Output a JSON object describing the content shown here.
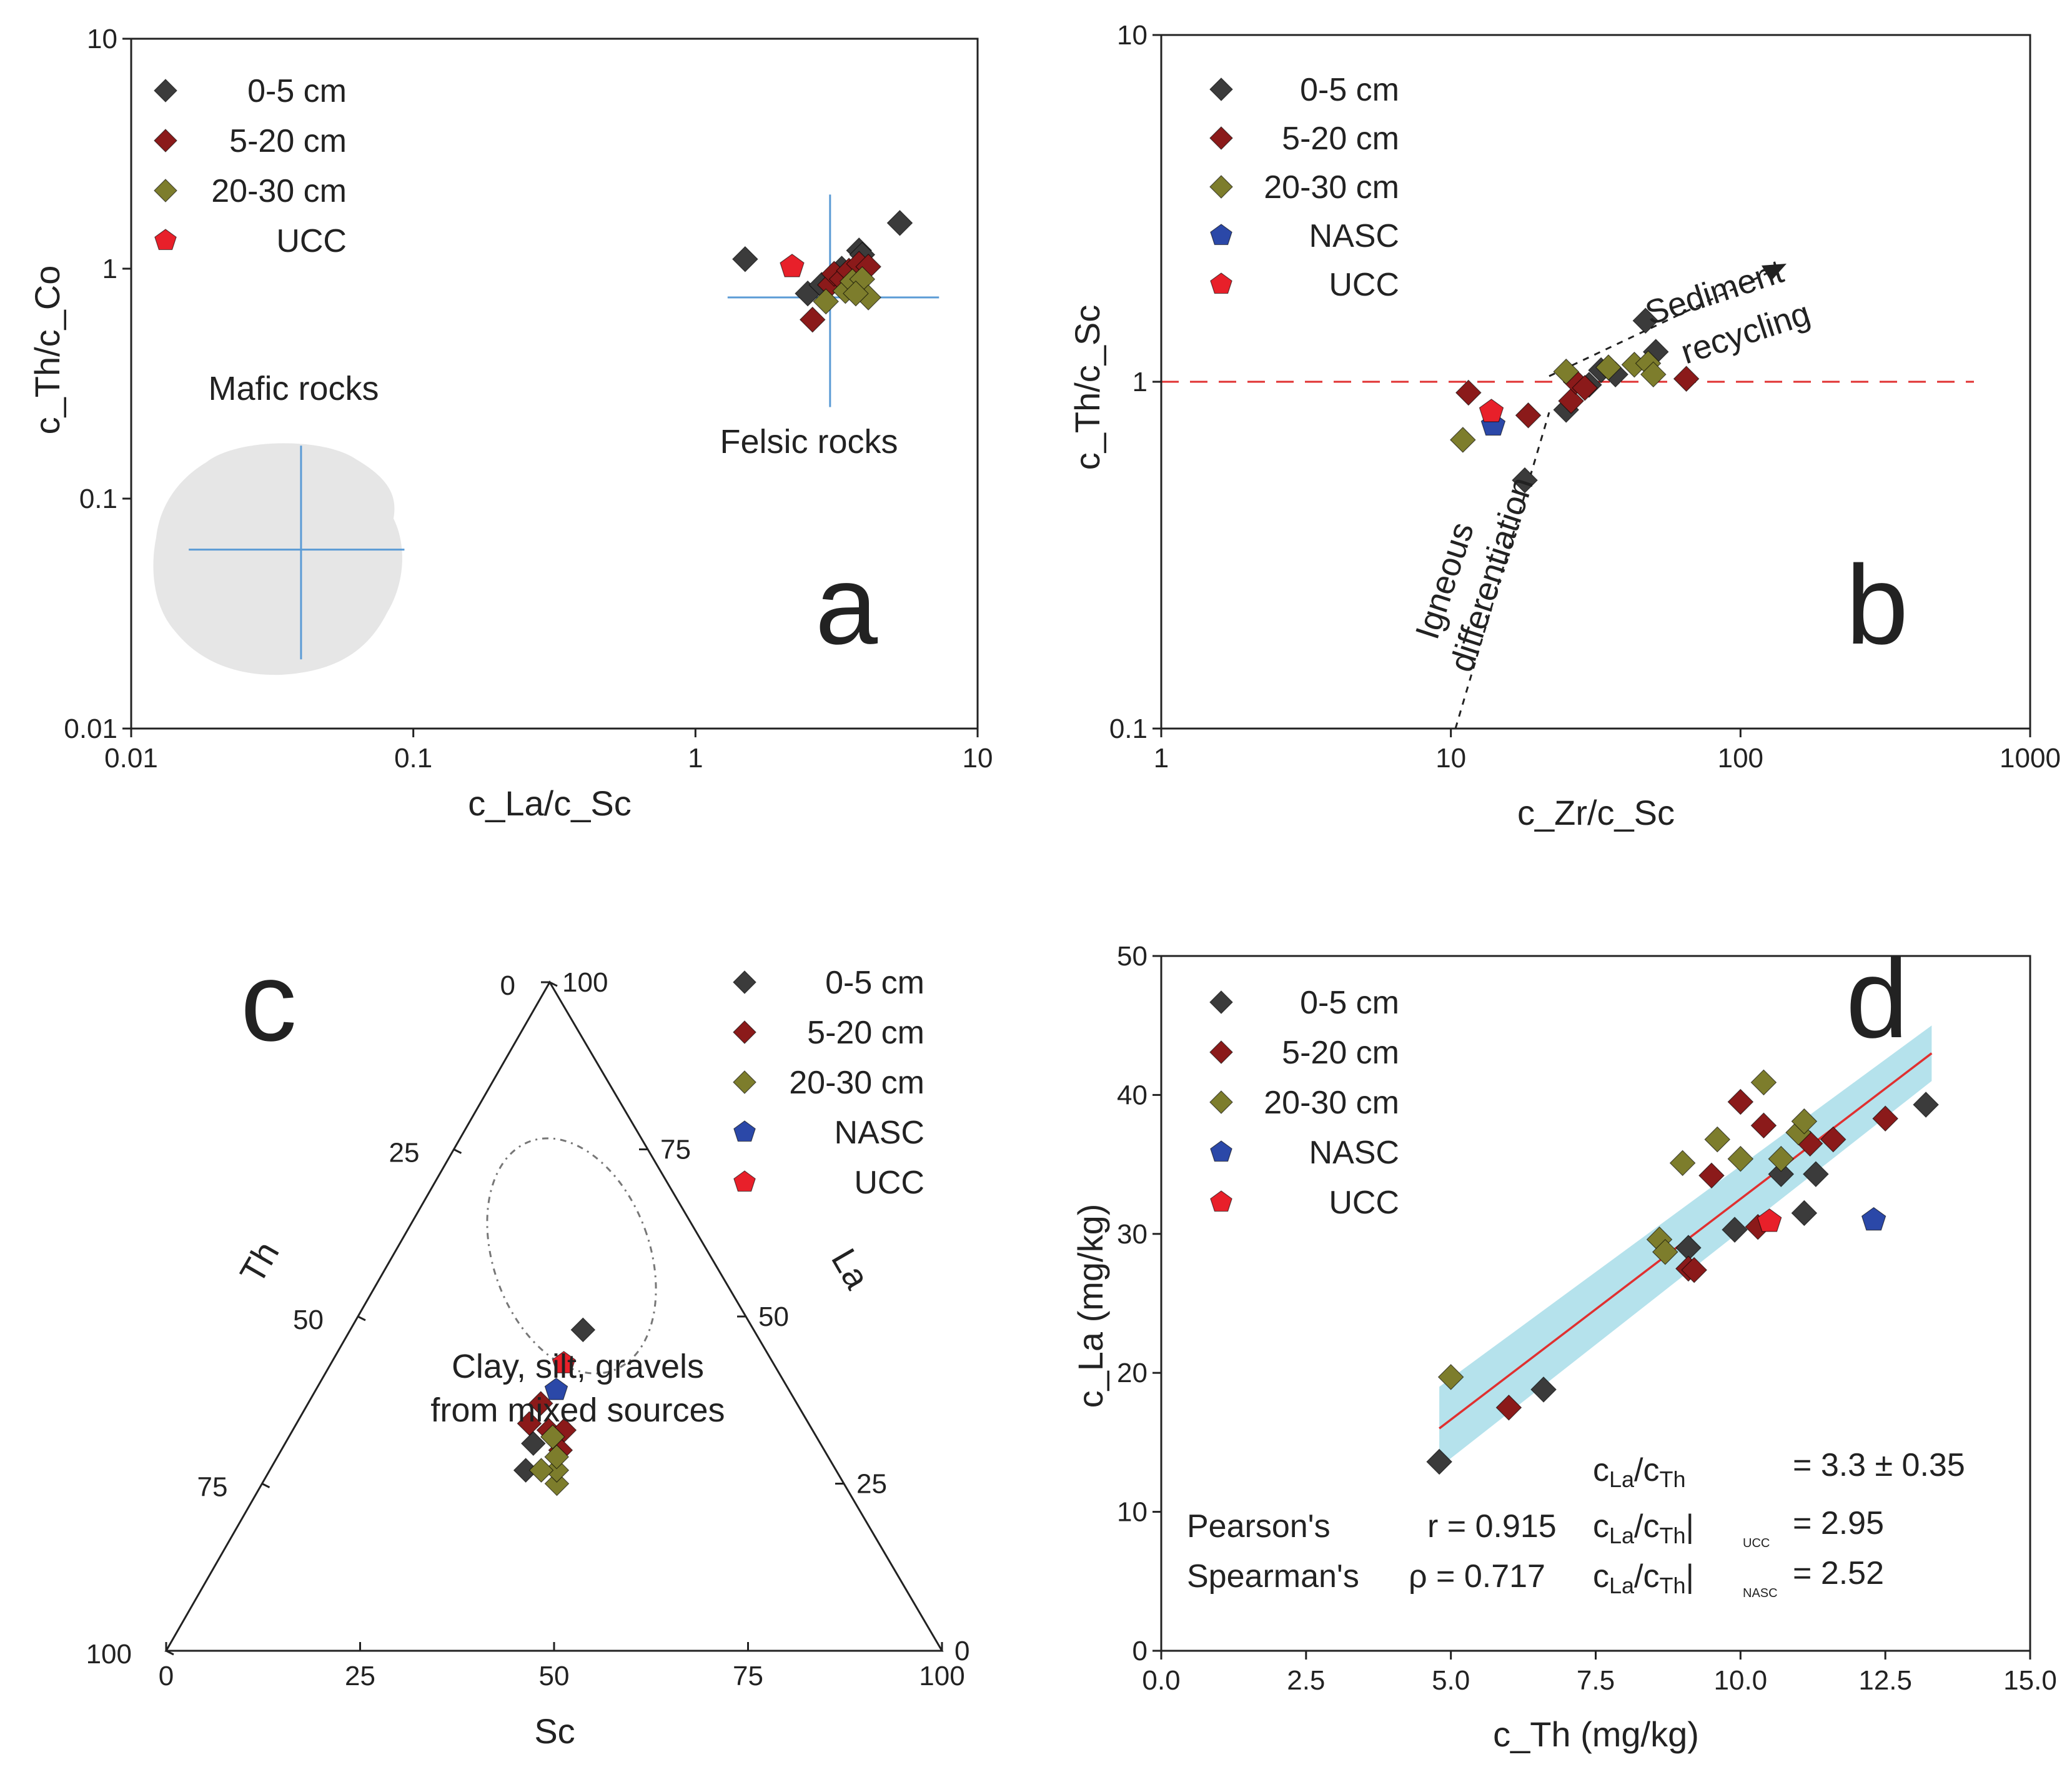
{
  "colors": {
    "0-5 cm": "#3b3b3b",
    "5-20 cm": "#8b1a1a",
    "20-30 cm": "#7d7d2c",
    "NASC": "#2b48a8",
    "UCC": "#e8202a",
    "fit": "#e03030",
    "ci": "#a8dde9",
    "cross": "#5b9bd5",
    "region": "#e6e6e6",
    "ref_line": "#e03030"
  },
  "chart_data": [
    {
      "panel": "a",
      "type": "scatter",
      "title": "",
      "xlabel": "c_La/c_Sc",
      "ylabel": "c_Th/c_Co",
      "xscale": "log",
      "yscale": "log",
      "xlim": [
        0.01,
        10
      ],
      "ylim": [
        0.01,
        10
      ],
      "xticks": [
        "0.01",
        "0.1",
        "1",
        "10"
      ],
      "yticks": [
        "0.01",
        "0.1",
        "1",
        "10"
      ],
      "legend": [
        "0-5 cm",
        "5-20 cm",
        "20-30 cm",
        "UCC"
      ],
      "legend_position": "top-left",
      "series": [
        {
          "name": "0-5 cm",
          "marker": "diamond",
          "points": [
            [
              1.5,
              1.1
            ],
            [
              2.5,
              0.78
            ],
            [
              2.8,
              0.85
            ],
            [
              3.3,
              1.0
            ],
            [
              3.8,
              1.2
            ],
            [
              3.9,
              1.15
            ],
            [
              5.3,
              1.58
            ]
          ]
        },
        {
          "name": "5-20 cm",
          "marker": "diamond",
          "points": [
            [
              2.6,
              0.6
            ],
            [
              3.0,
              0.85
            ],
            [
              3.1,
              0.95
            ],
            [
              3.3,
              0.9
            ],
            [
              3.5,
              0.98
            ],
            [
              3.8,
              1.05
            ],
            [
              4.1,
              1.02
            ]
          ]
        },
        {
          "name": "20-30 cm",
          "marker": "diamond",
          "points": [
            [
              2.9,
              0.72
            ],
            [
              3.4,
              0.8
            ],
            [
              3.6,
              0.88
            ],
            [
              3.9,
              0.9
            ],
            [
              4.1,
              0.75
            ],
            [
              3.7,
              0.78
            ]
          ]
        },
        {
          "name": "UCC",
          "marker": "pentagon",
          "points": [
            [
              2.2,
              1.02
            ]
          ]
        }
      ],
      "annotations": [
        "Mafic rocks",
        "Felsic rocks",
        "a"
      ],
      "felsic_cross": {
        "x_center": 3.0,
        "y_center": 0.75,
        "x_range": [
          1.3,
          7.3
        ],
        "y_range": [
          0.25,
          2.1
        ]
      },
      "mafic_cross": {
        "x_center": 0.04,
        "y_center": 0.06,
        "x_range": [
          0.016,
          0.093
        ],
        "y_range": [
          0.02,
          0.17
        ]
      }
    },
    {
      "panel": "b",
      "type": "scatter",
      "title": "",
      "xlabel": "c_Zr/c_Sc",
      "ylabel": "c_Th/c_Sc",
      "xscale": "log",
      "yscale": "log",
      "xlim": [
        1,
        1000
      ],
      "ylim": [
        0.1,
        10
      ],
      "xticks": [
        "1",
        "10",
        "100",
        "1000"
      ],
      "yticks": [
        "0.1",
        "1",
        "10"
      ],
      "legend": [
        "0-5 cm",
        "5-20 cm",
        "20-30 cm",
        "NASC",
        "UCC"
      ],
      "legend_position": "top-left",
      "reference_line_y": 1,
      "series": [
        {
          "name": "0-5 cm",
          "marker": "diamond",
          "points": [
            [
              18,
              0.52
            ],
            [
              25,
              0.83
            ],
            [
              30,
              0.98
            ],
            [
              33,
              1.08
            ],
            [
              37,
              1.05
            ],
            [
              47,
              1.5
            ],
            [
              51,
              1.22
            ]
          ]
        },
        {
          "name": "5-20 cm",
          "marker": "diamond",
          "points": [
            [
              11.5,
              0.93
            ],
            [
              18.5,
              0.8
            ],
            [
              26,
              0.88
            ],
            [
              27,
              1.0
            ],
            [
              29,
              0.96
            ],
            [
              65,
              1.02
            ]
          ]
        },
        {
          "name": "20-30 cm",
          "marker": "diamond",
          "points": [
            [
              11,
              0.68
            ],
            [
              25,
              1.07
            ],
            [
              35,
              1.1
            ],
            [
              43,
              1.12
            ],
            [
              48,
              1.13
            ],
            [
              50,
              1.05
            ]
          ]
        },
        {
          "name": "NASC",
          "marker": "pentagon",
          "points": [
            [
              14,
              0.75
            ]
          ]
        },
        {
          "name": "UCC",
          "marker": "pentagon",
          "points": [
            [
              13.8,
              0.82
            ]
          ]
        }
      ],
      "annotations": [
        "Sediment",
        "recycling",
        "Igneous",
        "differentiation",
        "b"
      ]
    },
    {
      "panel": "c",
      "type": "scatter",
      "title": "",
      "ternary": true,
      "axes": [
        "Th",
        "La",
        "Sc"
      ],
      "ticks": [
        "0",
        "25",
        "50",
        "75",
        "100"
      ],
      "legend": [
        "0-5 cm",
        "5-20 cm",
        "20-30 cm",
        "NASC",
        "UCC"
      ],
      "legend_position": "top-right",
      "series": [
        {
          "name": "0-5 cm",
          "marker": "diamond",
          "points": [
            [
              40,
              33,
              27
            ],
            [
              37,
              32,
              31
            ],
            [
              22,
              30,
              48
            ]
          ]
        },
        {
          "name": "5-20 cm",
          "marker": "diamond",
          "points": [
            [
              36,
              30,
              34
            ],
            [
              34,
              33,
              33
            ],
            [
              32,
              35,
              33
            ],
            [
              34,
              36,
              30
            ],
            [
              33,
              30,
              37
            ]
          ]
        },
        {
          "name": "20-30 cm",
          "marker": "diamond",
          "points": [
            [
              37,
              38,
              25
            ],
            [
              36,
              37,
              27
            ],
            [
              35,
              36,
              29
            ],
            [
              38,
              35,
              27
            ],
            [
              34,
              34,
              32
            ]
          ]
        },
        {
          "name": "NASC",
          "marker": "pentagon",
          "points": [
            [
              30,
              31,
              39
            ]
          ]
        },
        {
          "name": "UCC",
          "marker": "pentagon",
          "points": [
            [
              27,
              30,
              43
            ]
          ]
        }
      ],
      "annotations": [
        "Clay, silt, gravels",
        "from mixed sources",
        "c"
      ]
    },
    {
      "panel": "d",
      "type": "scatter",
      "title": "",
      "xlabel": "c_Th (mg/kg)",
      "ylabel": "c_La (mg/kg)",
      "xlim": [
        0,
        15
      ],
      "ylim": [
        0,
        50
      ],
      "xticks": [
        "0.0",
        "2.5",
        "5.0",
        "7.5",
        "10.0",
        "12.5",
        "15.0"
      ],
      "yticks": [
        "0",
        "10",
        "20",
        "30",
        "40",
        "50"
      ],
      "legend": [
        "0-5 cm",
        "5-20 cm",
        "20-30 cm",
        "NASC",
        "UCC"
      ],
      "legend_position": "top-left",
      "series": [
        {
          "name": "0-5 cm",
          "marker": "diamond",
          "points": [
            [
              4.8,
              13.6
            ],
            [
              6.6,
              18.8
            ],
            [
              9.1,
              29.0
            ],
            [
              9.9,
              30.3
            ],
            [
              10.7,
              34.3
            ],
            [
              11.1,
              31.5
            ],
            [
              11.3,
              34.3
            ],
            [
              13.2,
              39.3
            ]
          ]
        },
        {
          "name": "5-20 cm",
          "marker": "diamond",
          "points": [
            [
              6.0,
              17.5
            ],
            [
              9.1,
              27.5
            ],
            [
              9.2,
              27.4
            ],
            [
              9.5,
              34.2
            ],
            [
              10.0,
              39.5
            ],
            [
              10.3,
              30.5
            ],
            [
              10.4,
              37.8
            ],
            [
              11.2,
              36.5
            ],
            [
              11.6,
              36.8
            ],
            [
              12.5,
              38.3
            ]
          ]
        },
        {
          "name": "20-30 cm",
          "marker": "diamond",
          "points": [
            [
              5.0,
              19.7
            ],
            [
              8.6,
              29.6
            ],
            [
              8.7,
              28.7
            ],
            [
              9.0,
              35.1
            ],
            [
              9.6,
              36.8
            ],
            [
              10.0,
              35.4
            ],
            [
              10.4,
              40.9
            ],
            [
              10.7,
              35.4
            ],
            [
              11.0,
              37.3
            ],
            [
              11.1,
              38.1
            ]
          ]
        },
        {
          "name": "NASC",
          "marker": "pentagon",
          "points": [
            [
              12.3,
              31.0
            ]
          ]
        },
        {
          "name": "UCC",
          "marker": "pentagon",
          "points": [
            [
              10.5,
              30.9
            ]
          ]
        }
      ],
      "fit": {
        "x": [
          4.8,
          13.3
        ],
        "y": [
          16.0,
          43.0
        ],
        "ci_upper": [
          19.0,
          45.0
        ],
        "ci_lower": [
          13.2,
          41.0
        ]
      },
      "annotations": [
        "d"
      ],
      "stats": {
        "ratio_line": "= 3.3 ± 0.35",
        "pearson_label": "Pearson's",
        "pearson_value": "r  = 0.915",
        "spearman_label": "Spearman's",
        "spearman_value": "ρ  = 0.717",
        "ucc_value": "= 2.95",
        "nasc_value": "= 2.52",
        "ucc_sub": "UCC",
        "nasc_sub": "NASC"
      }
    }
  ]
}
